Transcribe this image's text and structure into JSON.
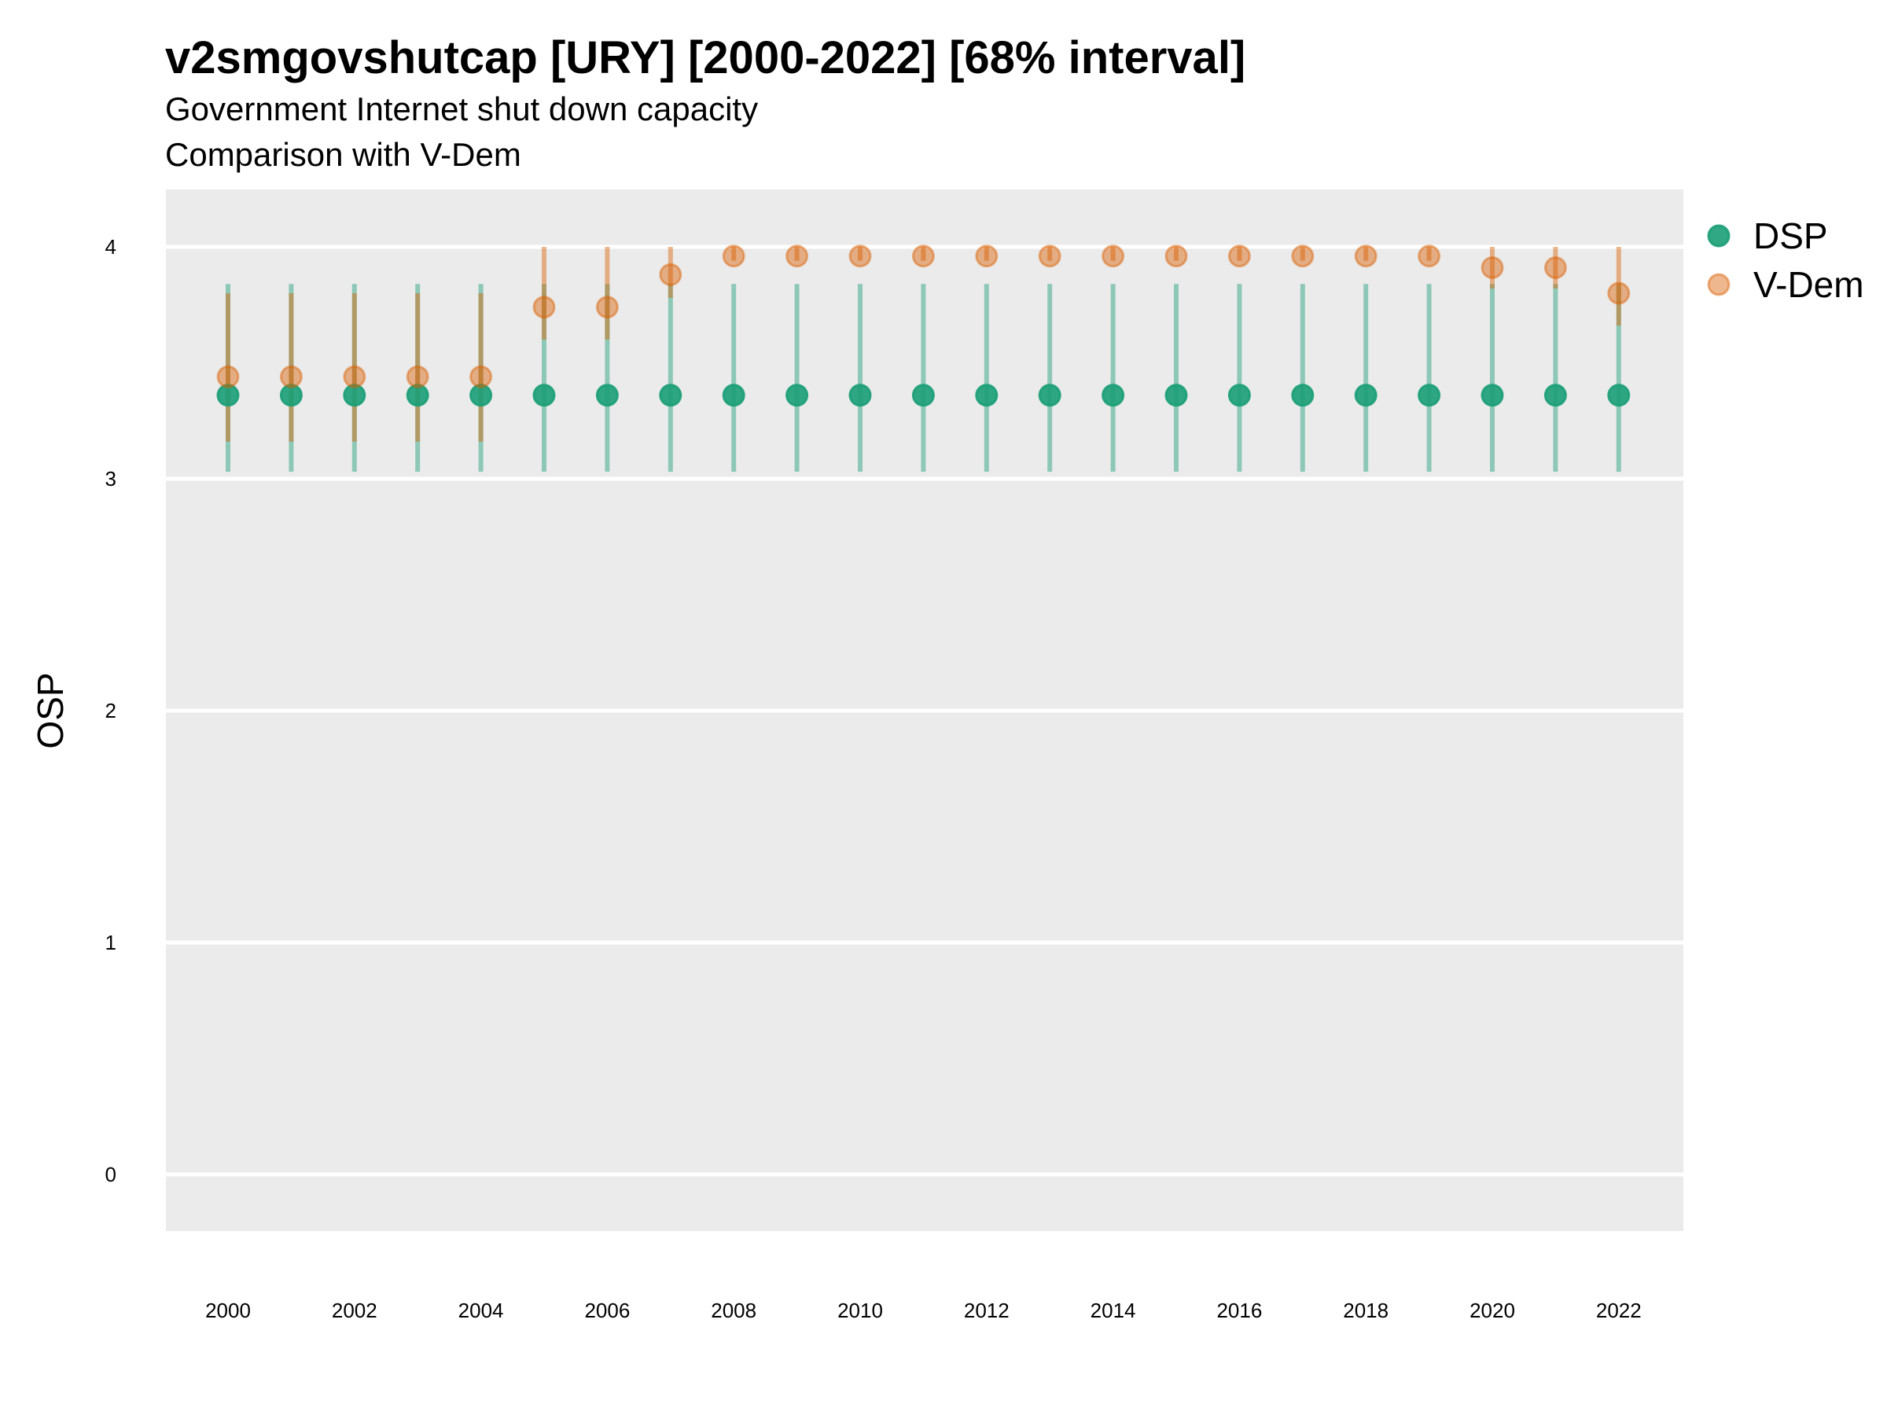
{
  "title": "v2smgovshutcap [URY] [2000-2022] [68% interval]",
  "subtitle": "Government Internet shut down capacity",
  "caption": "Comparison with V-Dem",
  "chart_data": {
    "type": "scatter",
    "ylabel": "OSP",
    "xlabel": "",
    "ylim": [
      -0.25,
      4.25
    ],
    "xlim": [
      1999,
      2023
    ],
    "y_ticks": [
      "0",
      "1",
      "2",
      "3",
      "4"
    ],
    "x_ticks": [
      "2000",
      "2002",
      "2004",
      "2006",
      "2008",
      "2010",
      "2012",
      "2014",
      "2016",
      "2018",
      "2020",
      "2022"
    ],
    "grid": true,
    "legend_position": "right",
    "x": [
      2000,
      2001,
      2002,
      2003,
      2004,
      2005,
      2006,
      2007,
      2008,
      2009,
      2010,
      2011,
      2012,
      2013,
      2014,
      2015,
      2016,
      2017,
      2018,
      2019,
      2020,
      2021,
      2022
    ],
    "series": [
      {
        "name": "DSP",
        "color": "#1b9e77",
        "values": [
          3.36,
          3.36,
          3.36,
          3.36,
          3.36,
          3.36,
          3.36,
          3.36,
          3.36,
          3.36,
          3.36,
          3.36,
          3.36,
          3.36,
          3.36,
          3.36,
          3.36,
          3.36,
          3.36,
          3.36,
          3.36,
          3.36,
          3.36
        ],
        "lower": [
          3.03,
          3.03,
          3.03,
          3.03,
          3.03,
          3.03,
          3.03,
          3.03,
          3.03,
          3.03,
          3.03,
          3.03,
          3.03,
          3.03,
          3.03,
          3.03,
          3.03,
          3.03,
          3.03,
          3.03,
          3.03,
          3.03,
          3.03
        ],
        "upper": [
          3.84,
          3.84,
          3.84,
          3.84,
          3.84,
          3.84,
          3.84,
          3.84,
          3.84,
          3.84,
          3.84,
          3.84,
          3.84,
          3.84,
          3.84,
          3.84,
          3.84,
          3.84,
          3.84,
          3.84,
          3.84,
          3.84,
          3.84
        ]
      },
      {
        "name": "V-Dem",
        "color": "#d95f02",
        "values": [
          3.44,
          3.44,
          3.44,
          3.44,
          3.44,
          3.74,
          3.74,
          3.88,
          3.96,
          3.96,
          3.96,
          3.96,
          3.96,
          3.96,
          3.96,
          3.96,
          3.96,
          3.96,
          3.96,
          3.96,
          3.91,
          3.91,
          3.8
        ],
        "lower": [
          3.16,
          3.16,
          3.16,
          3.16,
          3.16,
          3.6,
          3.6,
          3.78,
          3.94,
          3.94,
          3.94,
          3.94,
          3.94,
          3.94,
          3.94,
          3.94,
          3.94,
          3.94,
          3.94,
          3.94,
          3.82,
          3.82,
          3.66
        ],
        "upper": [
          3.8,
          3.8,
          3.8,
          3.8,
          3.8,
          4.0,
          4.0,
          4.0,
          4.0,
          4.0,
          4.0,
          4.0,
          4.0,
          4.0,
          4.0,
          4.0,
          4.0,
          4.0,
          4.0,
          4.0,
          4.0,
          4.0,
          4.0
        ]
      }
    ]
  }
}
